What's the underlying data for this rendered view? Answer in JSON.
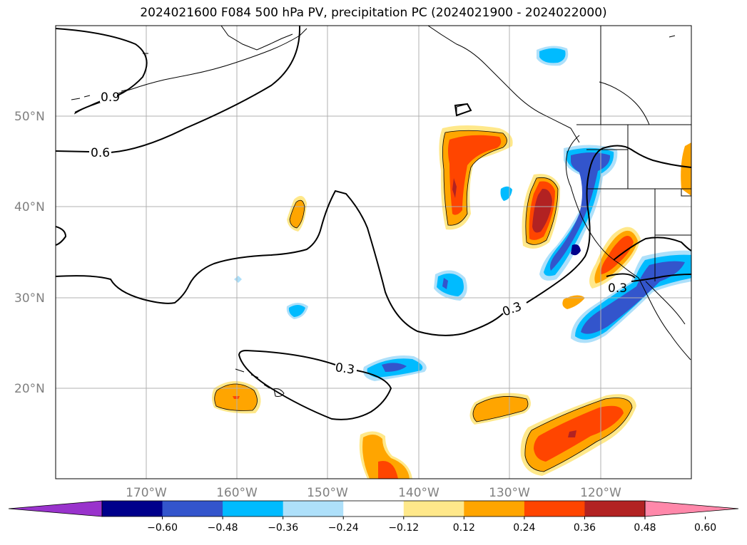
{
  "title": "2024021600 F084 500 hPa PV, precipitation PC (2024021900 - 2024022000)",
  "lat_labels": [
    "50°N",
    "40°N",
    "30°N",
    "20°N"
  ],
  "lon_labels": [
    "170°W",
    "160°W",
    "150°W",
    "140°W",
    "130°W",
    "120°W"
  ],
  "contour_labels": [
    "0.9",
    "0.6",
    "0.3",
    "0.3",
    "0.3"
  ],
  "colorbar": {
    "ticks": [
      "−0.60",
      "−0.48",
      "−0.36",
      "−0.24",
      "−0.12",
      "0.12",
      "0.24",
      "0.36",
      "0.48",
      "0.60"
    ],
    "colors": [
      "#9933cc",
      "#00008b",
      "#3355cc",
      "#00bbff",
      "#aee0fa",
      "#ffffff",
      "#ffe88a",
      "#ffa500",
      "#ff4500",
      "#b22222",
      "#ff88aa"
    ]
  },
  "fill_colors": {
    "yellow": "#ffe88a",
    "orange": "#ffa500",
    "orangered": "#ff4500",
    "darkred": "#b22222",
    "lightblue": "#aee0fa",
    "cyan": "#00bbff",
    "blue": "#3355cc",
    "navy": "#00008b"
  }
}
